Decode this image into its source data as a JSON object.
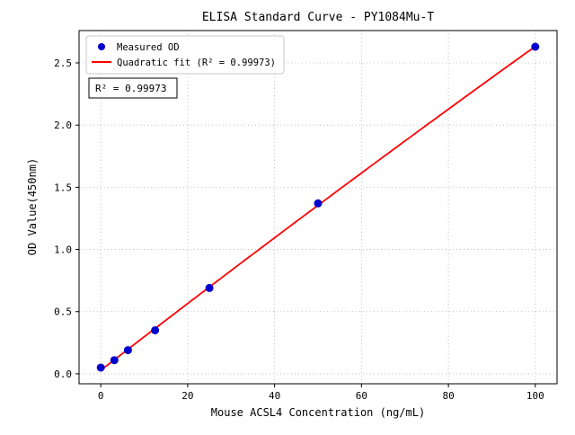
{
  "chart_data": {
    "type": "scatter",
    "title": "ELISA Standard Curve - PY1084Mu-T",
    "xlabel": "Mouse ACSL4 Concentration (ng/mL)",
    "ylabel": "OD Value(450nm)",
    "xlim": [
      -5,
      105
    ],
    "ylim": [
      -0.08,
      2.76
    ],
    "xticks": [
      0,
      20,
      40,
      60,
      80,
      100
    ],
    "xtick_labels": [
      "0",
      "20",
      "40",
      "60",
      "80",
      "100"
    ],
    "yticks": [
      0,
      0.5,
      1.0,
      1.5,
      2.0,
      2.5
    ],
    "ytick_labels": [
      "0.0",
      "0.5",
      "1.0",
      "1.5",
      "2.0",
      "2.5"
    ],
    "grid": true,
    "legend_position": "upper left",
    "annotation": "R² = 0.99973",
    "series": [
      {
        "name": "Measured OD",
        "type": "scatter",
        "marker": "circle",
        "color": "#0000cd",
        "x": [
          0,
          3.125,
          6.25,
          12.5,
          25,
          50,
          100
        ],
        "y": [
          0.05,
          0.11,
          0.19,
          0.35,
          0.69,
          1.37,
          2.63
        ]
      },
      {
        "name": "Quadratic fit (R² = 0.99973)",
        "type": "line",
        "fit": "quadratic",
        "color": "#ff0000",
        "r_squared": 0.99973
      }
    ]
  }
}
